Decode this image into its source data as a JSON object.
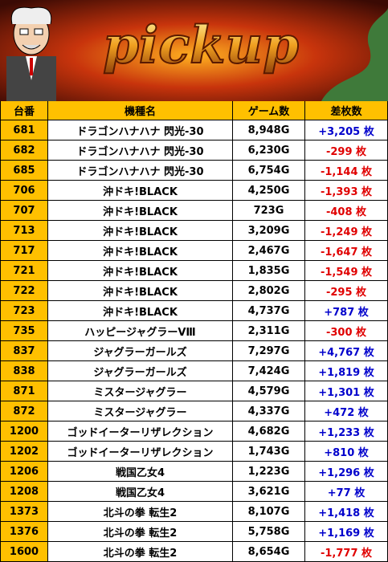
{
  "banner": {
    "title": "pickup"
  },
  "table": {
    "header": [
      "台番",
      "機種名",
      "ゲーム数",
      "差枚数"
    ],
    "rows": [
      [
        "681",
        "ドラゴンハナハナ 閃光-30",
        "8,948G",
        "+3,205 枚"
      ],
      [
        "682",
        "ドラゴンハナハナ 閃光-30",
        "6,230G",
        "-299 枚"
      ],
      [
        "685",
        "ドラゴンハナハナ 閃光-30",
        "6,754G",
        "-1,144 枚"
      ],
      [
        "706",
        "沖ドキ!BLACK",
        "4,250G",
        "-1,393 枚"
      ],
      [
        "707",
        "沖ドキ!BLACK",
        "723G",
        "-408 枚"
      ],
      [
        "713",
        "沖ドキ!BLACK",
        "3,209G",
        "-1,249 枚"
      ],
      [
        "717",
        "沖ドキ!BLACK",
        "2,467G",
        "-1,647 枚"
      ],
      [
        "721",
        "沖ドキ!BLACK",
        "1,835G",
        "-1,549 枚"
      ],
      [
        "722",
        "沖ドキ!BLACK",
        "2,802G",
        "-295 枚"
      ],
      [
        "723",
        "沖ドキ!BLACK",
        "4,737G",
        "+787 枚"
      ],
      [
        "735",
        "ハッピージャグラーVⅢ",
        "2,311G",
        "-300 枚"
      ],
      [
        "837",
        "ジャグラーガールズ",
        "7,297G",
        "+4,767 枚"
      ],
      [
        "838",
        "ジャグラーガールズ",
        "7,424G",
        "+1,819 枚"
      ],
      [
        "871",
        "ミスタージャグラー",
        "4,579G",
        "+1,301 枚"
      ],
      [
        "872",
        "ミスタージャグラー",
        "4,337G",
        "+472 枚"
      ],
      [
        "1200",
        "ゴッドイーターリザレクション",
        "4,682G",
        "+1,233 枚"
      ],
      [
        "1202",
        "ゴッドイーターリザレクション",
        "1,743G",
        "+810 枚"
      ],
      [
        "1206",
        "戦国乙女4",
        "1,223G",
        "+1,296 枚"
      ],
      [
        "1208",
        "戦国乙女4",
        "3,621G",
        "+77 枚"
      ],
      [
        "1373",
        "北斗の拳 転生2",
        "8,107G",
        "+1,418 枚"
      ],
      [
        "1376",
        "北斗の拳 転生2",
        "5,758G",
        "+1,169 枚"
      ],
      [
        "1600",
        "北斗の拳 転生2",
        "8,654G",
        "-1,777 枚"
      ]
    ]
  }
}
